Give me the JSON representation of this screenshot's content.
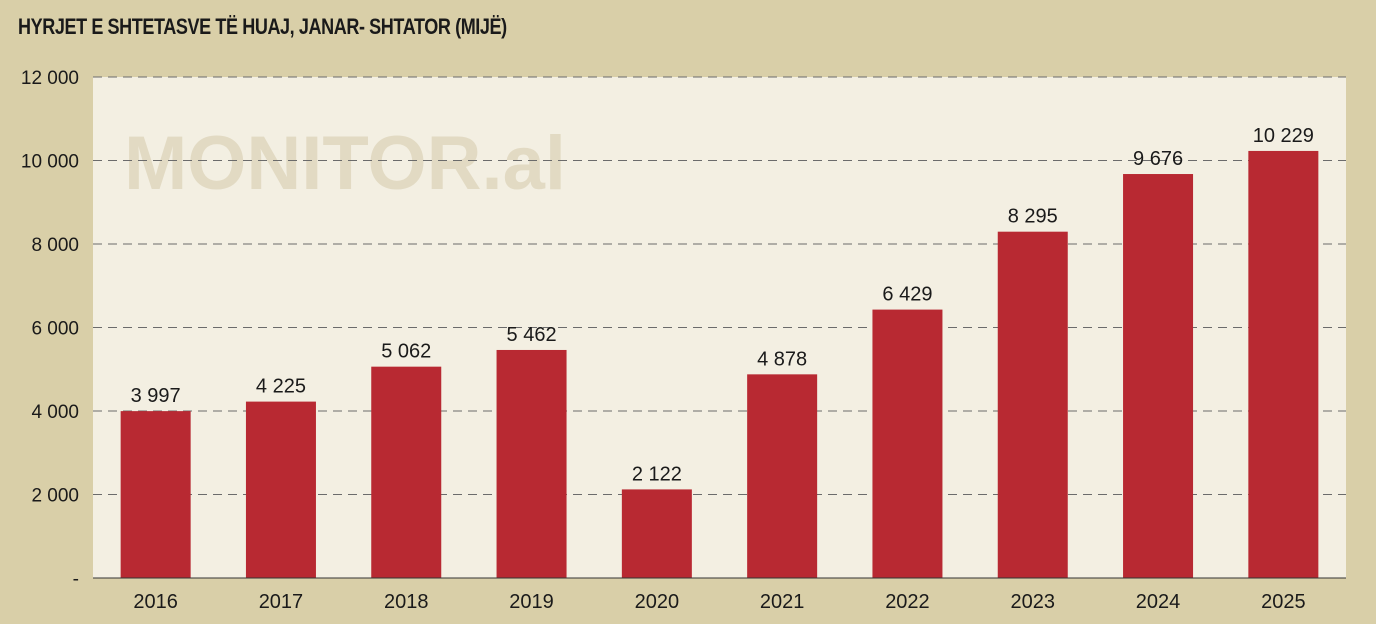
{
  "chart_data": {
    "type": "bar",
    "title": "HYRJET E SHTETASVE TË HUAJ, JANAR- SHTATOR (MIJË)",
    "watermark": "MONITOR.al",
    "categories": [
      "2016",
      "2017",
      "2018",
      "2019",
      "2020",
      "2021",
      "2022",
      "2023",
      "2024",
      "2025"
    ],
    "values": [
      3997,
      4225,
      5062,
      5462,
      2122,
      4878,
      6429,
      8295,
      9676,
      10229
    ],
    "value_labels": [
      "3 997",
      "4 225",
      "5 062",
      "5 462",
      "2 122",
      "4 878",
      "6 429",
      "8 295",
      "9 676",
      "10 229"
    ],
    "yticks": [
      0,
      2000,
      4000,
      6000,
      8000,
      10000,
      12000
    ],
    "ytick_labels": [
      "-",
      "2 000",
      "4 000",
      "6 000",
      "8 000",
      "10 000",
      "12 000"
    ],
    "ylim": [
      0,
      12000
    ],
    "grid": true,
    "colors": {
      "bar": "#b82932",
      "plot_bg": "#f3efe2",
      "page_bg": "#d9cfa8"
    }
  }
}
